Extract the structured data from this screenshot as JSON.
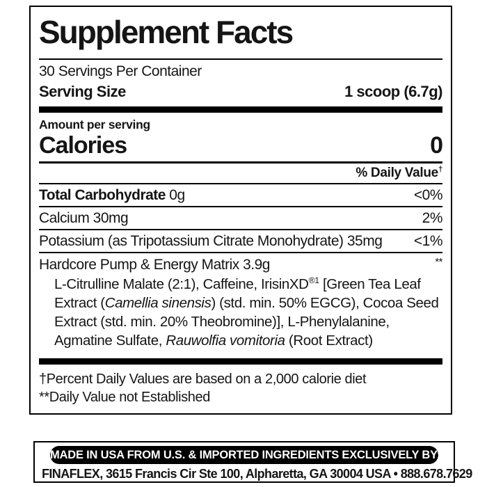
{
  "colors": {
    "text": "#151515",
    "rule": "#000000",
    "background": "#ffffff",
    "pill_background": "#000000",
    "pill_text": "#ffffff"
  },
  "supplement_facts": {
    "title": "Supplement Facts",
    "servings_per_container": "30 Servings Per Container",
    "serving_size": {
      "label": "Serving Size",
      "value": "1 scoop (6.7g)"
    },
    "amount_per_serving_label": "Amount per serving",
    "calories": {
      "label": "Calories",
      "value": "0"
    },
    "daily_value_header": {
      "text": "% Daily Value",
      "dagger": "†"
    },
    "nutrient_rows": [
      {
        "bold": "Total Carbohydrate",
        "text": " 0g",
        "value": "<0%"
      },
      {
        "bold": "",
        "text": "Calcium 30mg",
        "value": "2%"
      },
      {
        "bold": "",
        "text": "Potassium (as Tripotassium Citrate Monohydrate) 35mg",
        "value": "<1%"
      }
    ],
    "matrix": {
      "name": "Hardcore Pump & Energy Matrix 3.9g",
      "value": "**",
      "ingredients_segments": [
        {
          "text": "L-Citrulline Malate (2:1), Caffeine, IrisinXD",
          "style": "normal"
        },
        {
          "text": "®1",
          "style": "sup"
        },
        {
          "text": " [Green Tea Leaf Extract (",
          "style": "normal"
        },
        {
          "text": "Camellia sinensis",
          "style": "italic"
        },
        {
          "text": ") (std. min. 50% EGCG), Cocoa Seed Extract (std. min. 20% Theobromine)], L-Phenylalanine, Agmatine Sulfate, ",
          "style": "normal"
        },
        {
          "text": "Rauwolfia vomitoria",
          "style": "italic"
        },
        {
          "text": " (Root Extract)",
          "style": "normal"
        }
      ]
    },
    "footnotes": [
      "†Percent Daily Values are based on a 2,000 calorie diet",
      "**Daily Value not Established"
    ]
  },
  "manufacturer": {
    "made_in": "MADE IN USA FROM U.S. & IMPORTED INGREDIENTS EXCLUSIVELY BY:",
    "address": "FINAFLEX, 3615 Francis Cir Ste 100, Alpharetta, GA 30004 USA • 888.678.7629"
  }
}
